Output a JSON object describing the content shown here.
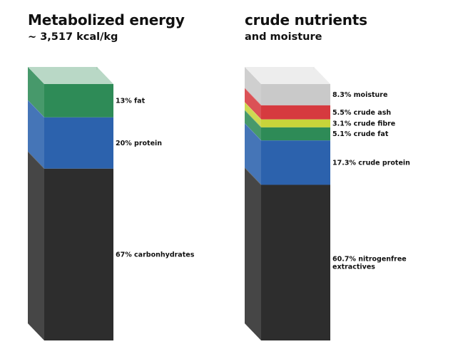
{
  "chart_data": [
    {
      "type": "stacked-column",
      "title": "Metabolized energy",
      "subtitle": "~ 3,517 kcal/kg",
      "segments": [
        {
          "name": "fat",
          "label": "13% fat",
          "value": 13,
          "color": "#2e8b57"
        },
        {
          "name": "protein",
          "label": "20% protein",
          "value": 20,
          "color": "#2c62ad"
        },
        {
          "name": "carbonhydrates",
          "label": "67% carbonhydrates",
          "value": 67,
          "color": "#2d2d2d"
        }
      ]
    },
    {
      "type": "stacked-column",
      "title": "crude nutrients",
      "subtitle": "and moisture",
      "segments": [
        {
          "name": "moisture",
          "label": "8.3% moisture",
          "value": 8.3,
          "color": "#c9c9c9"
        },
        {
          "name": "crude-ash",
          "label": "5.5% crude ash",
          "value": 5.5,
          "color": "#d63a3f"
        },
        {
          "name": "crude-fibre",
          "label": "3.1% crude fibre",
          "value": 3.1,
          "color": "#c7d43a"
        },
        {
          "name": "crude-fat",
          "label": "5.1% crude fat",
          "value": 5.1,
          "color": "#2e8b57"
        },
        {
          "name": "crude-protein",
          "label": "17.3% crude protein",
          "value": 17.3,
          "color": "#2c62ad"
        },
        {
          "name": "nitrogenfree-extractives",
          "label": "60.7% nitrogenfree extractives",
          "value": 60.7,
          "color": "#2d2d2d"
        }
      ]
    }
  ]
}
